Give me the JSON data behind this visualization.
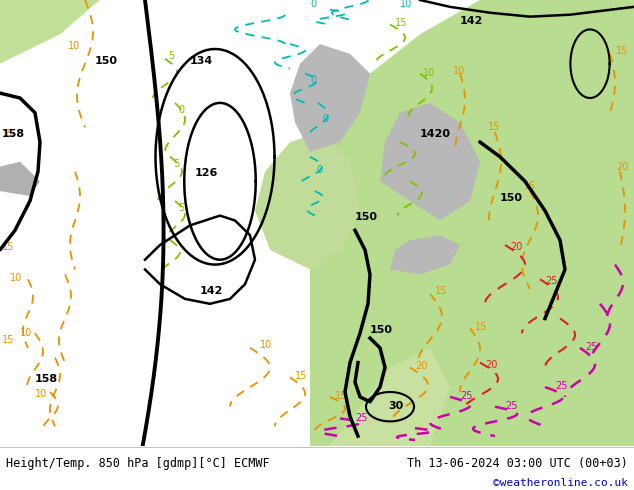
{
  "title_left": "Height/Temp. 850 hPa [gdmp][°C] ECMWF",
  "title_right": "Th 13-06-2024 03:00 UTC (00+03)",
  "credit": "©weatheronline.co.uk",
  "footer_bg": "#ffffff",
  "footer_text_color": "#000000",
  "credit_color": "#0000cc",
  "figwidth": 6.34,
  "figheight": 4.9,
  "dpi": 100,
  "map_bg": "#d8d8d8",
  "green_light": "#c8e8a0",
  "green_medium": "#b0d880",
  "gray_land": "#c0c0c0",
  "orange": "#e89000",
  "cyan": "#00b8b8",
  "lime": "#80c000",
  "red": "#dd2222",
  "magenta": "#cc00aa",
  "black": "#000000"
}
